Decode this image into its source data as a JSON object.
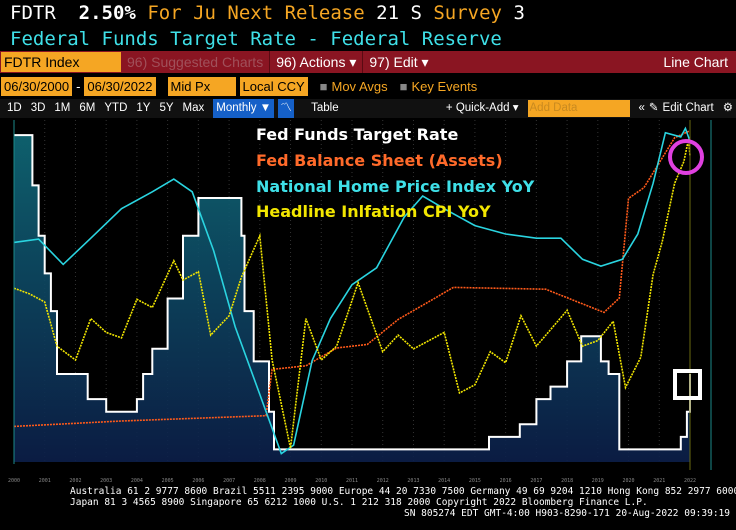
{
  "header": {
    "ticker": "FDTR",
    "value": "2.50%",
    "for_label": "For Ju",
    "next_release_label": "Next Release",
    "next_release_value": "21 S",
    "survey_label": "Survey",
    "survey_value": "3",
    "subtitle": "Federal Funds Target Rate - Federal Reserve"
  },
  "toolbar": {
    "security": "FDTR Index",
    "suggested": "96) Suggested Charts",
    "actions": "96) Actions ▾",
    "edit": "97) Edit ▾",
    "chart_type": "Line Chart"
  },
  "range": {
    "start": "06/30/2000",
    "end": "06/30/2022",
    "price": "Mid Px",
    "currency": "Local CCY",
    "mov_avgs": "Mov Avgs",
    "key_events": "Key Events"
  },
  "periods": {
    "items": [
      "1D",
      "3D",
      "1M",
      "6M",
      "YTD",
      "1Y",
      "5Y",
      "Max"
    ],
    "frequency": "Monthly ▼",
    "table": "Table",
    "quick_add": "+ Quick-Add ▾",
    "add_data_placeholder": "Add Data",
    "edit_chart": "Edit Chart"
  },
  "colors": {
    "fed_funds": "#ffffff",
    "balance_sheet": "#ff5a1a",
    "home_price": "#2ad4e0",
    "cpi": "#f2e600",
    "highlight_circle": "#e040e0",
    "fill": "#0e5a6e"
  },
  "chart_data": {
    "type": "line",
    "x_unit": "year",
    "xlim": [
      2000.5,
      2022.5
    ],
    "x_ticks": [
      "2000",
      "2001",
      "2002",
      "2003",
      "2004",
      "2005",
      "2006",
      "2007",
      "2008",
      "2009",
      "2010",
      "2011",
      "2012",
      "2013",
      "2014",
      "2015",
      "2016",
      "2017",
      "2018",
      "2019",
      "2020",
      "2021",
      "2022"
    ],
    "legend": [
      "Fed Funds Target Rate",
      "Fed Balance Sheet (Assets)",
      "National Home Price Index YoY",
      "Headline Inlfation CPI YoY"
    ],
    "legend_placement": "top-center",
    "series": [
      {
        "name": "Fed Funds Target Rate",
        "unit": "%",
        "ylim": [
          0,
          6.8
        ],
        "area": true,
        "x": [
          2000.5,
          2001.0,
          2001.1,
          2001.3,
          2001.5,
          2001.7,
          2001.9,
          2002.9,
          2003.5,
          2004.5,
          2004.7,
          2005.0,
          2005.5,
          2006.0,
          2006.5,
          2007.7,
          2007.9,
          2008.0,
          2008.3,
          2008.8,
          2008.96,
          2015.96,
          2016.96,
          2017.5,
          2017.96,
          2018.5,
          2018.96,
          2019.6,
          2019.85,
          2020.2,
          2022.2,
          2022.4,
          2022.5
        ],
        "y": [
          6.5,
          6.5,
          5.5,
          4.5,
          3.75,
          3.0,
          1.75,
          1.25,
          1.0,
          1.25,
          1.75,
          2.25,
          3.25,
          4.5,
          5.25,
          5.25,
          4.5,
          3.0,
          2.0,
          1.0,
          0.25,
          0.5,
          0.75,
          1.25,
          1.5,
          2.0,
          2.5,
          2.0,
          1.75,
          0.25,
          0.5,
          1.0,
          1.75
        ]
      },
      {
        "name": "Fed Balance Sheet (Assets)",
        "unit": "USD tn",
        "ylim": [
          -0.4,
          9.2
        ],
        "x": [
          2000.5,
          2004,
          2008.7,
          2008.9,
          2010,
          2011,
          2012,
          2013,
          2014.8,
          2017.8,
          2019.7,
          2020.2,
          2020.5,
          2021,
          2021.5,
          2022,
          2022.5
        ],
        "y": [
          0.6,
          0.75,
          0.9,
          2.2,
          2.3,
          2.8,
          2.9,
          3.6,
          4.5,
          4.45,
          3.8,
          4.2,
          7.0,
          7.3,
          8.0,
          8.7,
          8.9
        ]
      },
      {
        "name": "National Home Price Index YoY",
        "unit": "%",
        "ylim": [
          -20,
          20.5
        ],
        "x": [
          2000.5,
          2001.3,
          2002.1,
          2003,
          2004,
          2005,
          2005.7,
          2006.3,
          2007,
          2007.7,
          2008.5,
          2009.2,
          2009.6,
          2010.2,
          2010.8,
          2011.5,
          2012.3,
          2013.2,
          2013.8,
          2014.5,
          2015.5,
          2016.5,
          2017.5,
          2018.3,
          2019,
          2019.6,
          2020.3,
          2020.8,
          2021.3,
          2021.7,
          2022.2,
          2022.35,
          2022.5
        ],
        "y": [
          6,
          6.4,
          3.4,
          6.5,
          10,
          12,
          13.5,
          12,
          5,
          -4,
          -12,
          -19,
          -18,
          -8,
          -3,
          1,
          3,
          9,
          11.5,
          10,
          8,
          7,
          6.5,
          6.5,
          4,
          3.2,
          4,
          7,
          13,
          19,
          18.5,
          19.5,
          18
        ]
      },
      {
        "name": "Headline Inlfation CPI YoY",
        "unit": "%",
        "ylim": [
          -2.6,
          9.8
        ],
        "x": [
          2000.5,
          2001,
          2001.5,
          2001.9,
          2002.5,
          2003,
          2003.5,
          2004,
          2004.5,
          2005,
          2005.7,
          2006,
          2006.5,
          2006.9,
          2007.5,
          2007.9,
          2008.5,
          2008.9,
          2009.5,
          2010,
          2010.5,
          2011,
          2011.7,
          2012.5,
          2013,
          2013.5,
          2014.5,
          2015,
          2015.5,
          2016,
          2016.5,
          2017,
          2017.5,
          2018.5,
          2019,
          2019.5,
          2020,
          2020.4,
          2020.9,
          2021.3,
          2021.6,
          2022,
          2022.3,
          2022.45,
          2022.5
        ],
        "y": [
          3.7,
          3.5,
          3.2,
          1.6,
          1.1,
          2.6,
          2.1,
          1.9,
          3.3,
          3.0,
          4.7,
          4.0,
          4.3,
          2.0,
          2.7,
          4.1,
          5.6,
          1.1,
          -2.1,
          2.6,
          1.1,
          1.6,
          3.9,
          1.4,
          2.0,
          1.5,
          2.1,
          -0.1,
          0.2,
          1.4,
          1.0,
          2.7,
          1.6,
          2.9,
          1.6,
          1.8,
          2.5,
          0.1,
          1.2,
          4.2,
          5.4,
          7.5,
          8.3,
          9.1,
          8.5
        ]
      }
    ]
  },
  "footer": {
    "line1": "Australia 61 2 9777 8600 Brazil 5511 2395 9000 Europe 44 20 7330 7500 Germany 49 69 9204 1210 Hong Kong 852 2977 6000",
    "line2": "Japan 81 3 4565 8900      Singapore 65 6212 1000      U.S. 1 212 318 2000          Copyright 2022 Bloomberg Finance L.P.",
    "line3": "SN 805274 EDT  GMT-4:00 H903-8290-171 20-Aug-2022 09:39:19"
  }
}
